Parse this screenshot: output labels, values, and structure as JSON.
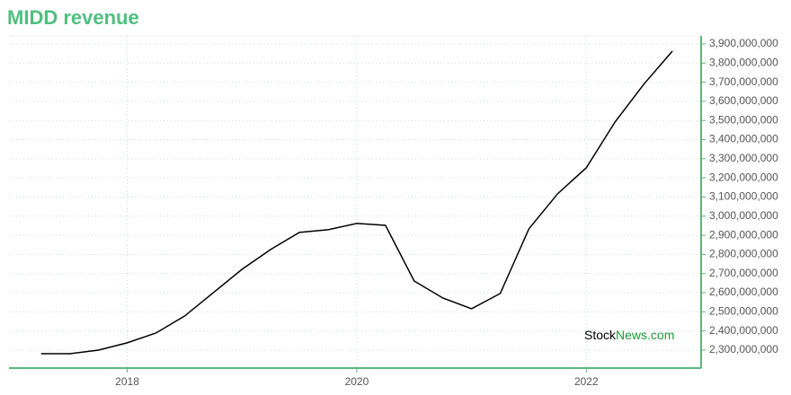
{
  "chart_data": {
    "type": "line",
    "title": "MIDD revenue",
    "x": [
      2017.25,
      2017.5,
      2017.75,
      2018.0,
      2018.25,
      2018.5,
      2018.75,
      2019.0,
      2019.25,
      2019.5,
      2019.75,
      2020.0,
      2020.25,
      2020.5,
      2020.75,
      2021.0,
      2021.25,
      2021.5,
      2021.75,
      2022.0,
      2022.25,
      2022.5,
      2022.75
    ],
    "series": [
      {
        "name": "MIDD revenue",
        "color": "#000000",
        "values": [
          2281000000,
          2281000000,
          2300000000,
          2338000000,
          2389000000,
          2478000000,
          2600000000,
          2722000000,
          2826000000,
          2915000000,
          2929000000,
          2962000000,
          2952000000,
          2661000000,
          2572000000,
          2516000000,
          2596000000,
          2934000000,
          3117000000,
          3253000000,
          3492000000,
          3689000000,
          3863000000
        ]
      }
    ],
    "xlim": [
      2016.97,
      2023.0
    ],
    "xticks": [
      2018,
      2020,
      2022
    ],
    "ylim": [
      2206000000,
      3942000000
    ],
    "yticks": [
      {
        "value": 2300000000,
        "label": "2,300,000,000"
      },
      {
        "value": 2400000000,
        "label": "2,400,000,000"
      },
      {
        "value": 2500000000,
        "label": "2,500,000,000"
      },
      {
        "value": 2600000000,
        "label": "2,600,000,000"
      },
      {
        "value": 2700000000,
        "label": "2,700,000,000"
      },
      {
        "value": 2800000000,
        "label": "2,800,000,000"
      },
      {
        "value": 2900000000,
        "label": "2,900,000,000"
      },
      {
        "value": 3000000000,
        "label": "3,000,000,000"
      },
      {
        "value": 3100000000,
        "label": "3,100,000,000"
      },
      {
        "value": 3200000000,
        "label": "3,200,000,000"
      },
      {
        "value": 3300000000,
        "label": "3,300,000,000"
      },
      {
        "value": 3400000000,
        "label": "3,400,000,000"
      },
      {
        "value": 3500000000,
        "label": "3,500,000,000"
      },
      {
        "value": 3600000000,
        "label": "3,600,000,000"
      },
      {
        "value": 3700000000,
        "label": "3,700,000,000"
      },
      {
        "value": 3800000000,
        "label": "3,800,000,000"
      },
      {
        "value": 3900000000,
        "label": "3,900,000,000"
      }
    ],
    "grid": true,
    "y_axis_side": "right",
    "axis_color": "#5cb87a",
    "watermark": [
      "Stock",
      "News.com"
    ]
  }
}
